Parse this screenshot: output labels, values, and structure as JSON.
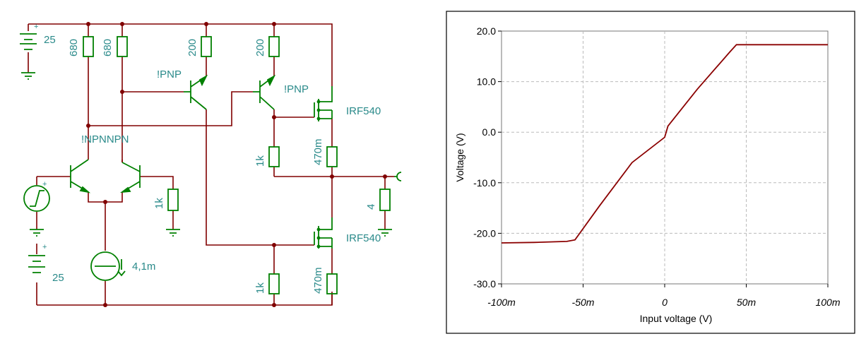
{
  "schematic": {
    "components": {
      "battery_top": "25",
      "battery_bottom": "25",
      "r_680_a": "680",
      "r_680_b": "680",
      "r_200_a": "200",
      "r_200_b": "200",
      "q_pnp_a": "!PNP",
      "q_pnp_b": "!PNP",
      "q_npn_pair": "!NPNNPN",
      "mosfet_top": "IRF540",
      "mosfet_bottom": "IRF540",
      "r_1k_top": "1k",
      "r_470m_top": "470m",
      "r_1k_load": "1k",
      "r_4": "4",
      "current_source": "4,1m",
      "r_1k_bottom": "1k",
      "r_470m_bottom": "470m",
      "plus_sign": "+"
    },
    "colors": {
      "wire": "#800000",
      "component": "#008000",
      "label": "#2a8a8a"
    }
  },
  "chart_data": {
    "type": "line",
    "title": "",
    "xlabel": "Input voltage (V)",
    "ylabel": "Voltage (V)",
    "xlim": [
      -0.1,
      0.1
    ],
    "ylim": [
      -30,
      20
    ],
    "x_ticks": [
      "-100m",
      "-50m",
      "0",
      "50m",
      "100m"
    ],
    "y_ticks": [
      "20.0",
      "10.0",
      "0.0",
      "-10.0",
      "-20.0",
      "-30.0"
    ],
    "grid": true,
    "line_color": "#8b0000",
    "series": [
      {
        "x": [
          -0.1,
          -0.08,
          -0.06,
          -0.055,
          -0.04,
          -0.02,
          0.0,
          0.002,
          0.02,
          0.04,
          0.044,
          0.06,
          0.08,
          0.1
        ],
        "y": [
          -21.9,
          -21.8,
          -21.6,
          -21.3,
          -14.6,
          -6.0,
          -1.0,
          1.2,
          8.5,
          15.9,
          17.3,
          17.3,
          17.3,
          17.3
        ]
      }
    ]
  }
}
